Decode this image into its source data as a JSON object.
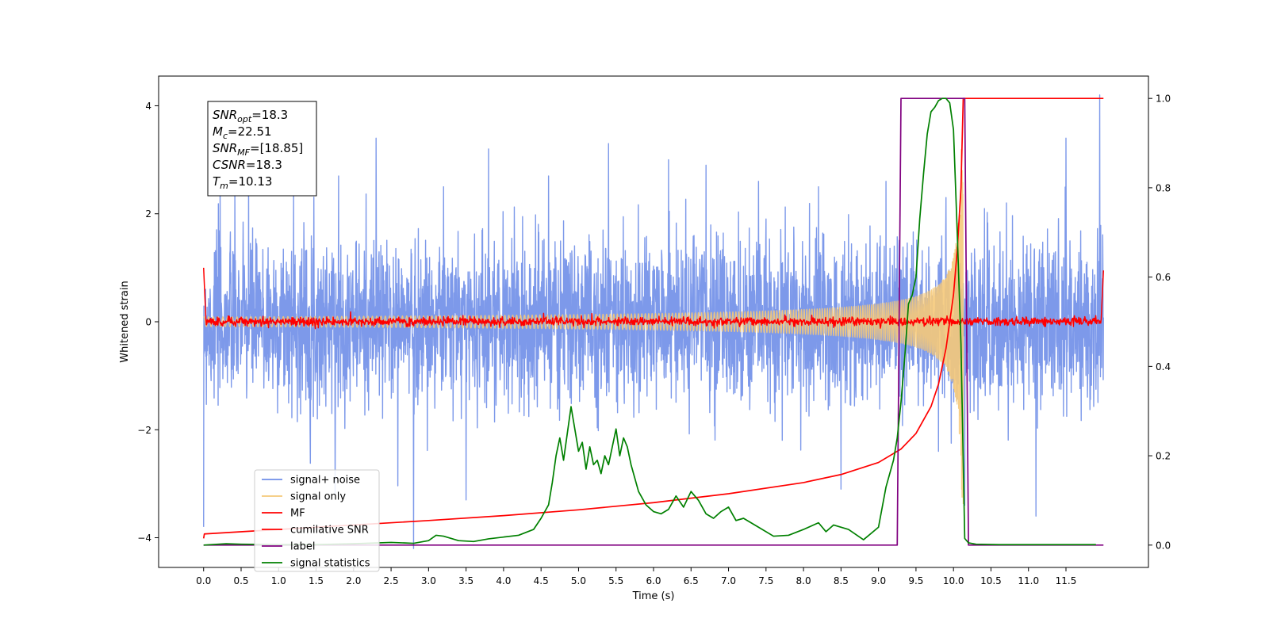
{
  "chart_data": {
    "type": "line",
    "xlabel": "Time (s)",
    "ylabel": "Whitened strain",
    "xlim": [
      -0.6,
      12.6
    ],
    "ylim": [
      -4.55,
      4.55
    ],
    "y2lim": [
      -0.05,
      1.05
    ],
    "xticks": [
      "0.0",
      "0.5",
      "1.0",
      "1.5",
      "2.0",
      "2.5",
      "3.0",
      "3.5",
      "4.0",
      "4.5",
      "5.0",
      "5.5",
      "6.0",
      "6.5",
      "7.0",
      "7.5",
      "8.0",
      "8.5",
      "9.0",
      "9.5",
      "10.0",
      "10.5",
      "11.0",
      "11.5"
    ],
    "yticks": [
      "−4",
      "−2",
      "0",
      "2",
      "4"
    ],
    "y2ticks": [
      "0.0",
      "0.2",
      "0.4",
      "0.6",
      "0.8",
      "1.0"
    ],
    "grid": false,
    "legend_position": "lower-left",
    "annotation": {
      "lines": [
        {
          "main": "SNR",
          "sub": "opt",
          "value": "=18.3"
        },
        {
          "main": "M",
          "sub": "c",
          "value": "=22.51"
        },
        {
          "main": "SNR",
          "sub": "MF",
          "value": "=[18.85]"
        },
        {
          "main": "CSNR",
          "sub": "",
          "value": "=18.3"
        },
        {
          "main": "T",
          "sub": "m",
          "value": "=10.13"
        }
      ]
    },
    "series": [
      {
        "name": "signal+ noise",
        "axis": "left",
        "color": "#6f8ee8",
        "style": "noise",
        "x_range": [
          0.0,
          12.0
        ],
        "sigma": 0.75,
        "peaks": [
          [
            0.22,
            2.7
          ],
          [
            0.6,
            2.6
          ],
          [
            1.2,
            2.4
          ],
          [
            1.8,
            2.7
          ],
          [
            2.3,
            3.4
          ],
          [
            2.8,
            -4.2
          ],
          [
            3.2,
            2.5
          ],
          [
            3.8,
            3.2
          ],
          [
            4.6,
            2.7
          ],
          [
            5.4,
            3.3
          ],
          [
            6.2,
            3.0
          ],
          [
            6.7,
            2.9
          ],
          [
            7.4,
            2.6
          ],
          [
            8.2,
            2.5
          ],
          [
            9.1,
            2.6
          ],
          [
            9.9,
            2.3
          ],
          [
            10.15,
            -3.4
          ],
          [
            11.5,
            3.4
          ],
          [
            11.95,
            4.2
          ],
          [
            0.0,
            -3.8
          ],
          [
            3.5,
            -3.3
          ],
          [
            8.5,
            -3.1
          ],
          [
            9.8,
            -2.4
          ],
          [
            11.1,
            -3.6
          ]
        ]
      },
      {
        "name": "signal only",
        "axis": "left",
        "color": "#f5c97a",
        "style": "chirp",
        "x_range": [
          0.0,
          10.13
        ],
        "merger_time": 10.13,
        "peak_amplitude": 3.4
      },
      {
        "name": "MF",
        "axis": "left",
        "color": "#ff0000",
        "style": "mf",
        "x_range": [
          0.0,
          12.0
        ],
        "start_value": 1.0,
        "end_value": 0.95,
        "noise_sigma": 0.04
      },
      {
        "name": "cumilative SNR",
        "axis": "right",
        "color": "#ff0000",
        "x": [
          0.0,
          0.01,
          1.0,
          2.0,
          3.0,
          4.0,
          5.0,
          6.0,
          7.0,
          8.0,
          8.5,
          9.0,
          9.3,
          9.5,
          9.7,
          9.8,
          9.9,
          10.0,
          10.05,
          10.1,
          10.13,
          12.0
        ],
        "values": [
          0.015,
          0.025,
          0.035,
          0.045,
          0.055,
          0.066,
          0.079,
          0.095,
          0.115,
          0.14,
          0.158,
          0.185,
          0.215,
          0.25,
          0.31,
          0.36,
          0.44,
          0.56,
          0.66,
          0.8,
          1.0,
          1.0
        ]
      },
      {
        "name": "label",
        "axis": "right",
        "color": "#800080",
        "x": [
          0.0,
          9.25,
          9.3,
          10.15,
          10.2,
          12.0
        ],
        "values": [
          0.0,
          0.0,
          1.0,
          1.0,
          0.0,
          0.0
        ]
      },
      {
        "name": "signal statistics",
        "axis": "right",
        "color": "#008000",
        "x": [
          0.0,
          0.3,
          0.5,
          1.0,
          1.5,
          2.0,
          2.5,
          2.8,
          3.0,
          3.1,
          3.2,
          3.4,
          3.6,
          3.8,
          4.0,
          4.2,
          4.4,
          4.5,
          4.6,
          4.65,
          4.7,
          4.75,
          4.8,
          4.85,
          4.9,
          4.95,
          5.0,
          5.05,
          5.1,
          5.15,
          5.2,
          5.25,
          5.3,
          5.35,
          5.4,
          5.45,
          5.5,
          5.55,
          5.6,
          5.65,
          5.7,
          5.75,
          5.8,
          5.9,
          6.0,
          6.1,
          6.2,
          6.3,
          6.4,
          6.5,
          6.6,
          6.7,
          6.8,
          6.9,
          7.0,
          7.1,
          7.2,
          7.4,
          7.6,
          7.8,
          8.0,
          8.2,
          8.3,
          8.4,
          8.6,
          8.8,
          9.0,
          9.1,
          9.15,
          9.2,
          9.25,
          9.3,
          9.35,
          9.4,
          9.45,
          9.5,
          9.55,
          9.6,
          9.65,
          9.7,
          9.75,
          9.8,
          9.85,
          9.9,
          9.95,
          10.0,
          10.05,
          10.1,
          10.15,
          10.2,
          10.3,
          10.6,
          11.0,
          11.5,
          11.9
        ],
        "values": [
          0.0,
          0.003,
          0.002,
          0.001,
          0.001,
          0.003,
          0.006,
          0.004,
          0.01,
          0.022,
          0.02,
          0.01,
          0.008,
          0.014,
          0.018,
          0.022,
          0.035,
          0.06,
          0.09,
          0.14,
          0.2,
          0.24,
          0.19,
          0.25,
          0.31,
          0.26,
          0.21,
          0.23,
          0.17,
          0.22,
          0.18,
          0.19,
          0.16,
          0.2,
          0.18,
          0.22,
          0.26,
          0.2,
          0.24,
          0.22,
          0.18,
          0.15,
          0.12,
          0.09,
          0.075,
          0.07,
          0.08,
          0.11,
          0.085,
          0.12,
          0.1,
          0.07,
          0.06,
          0.075,
          0.085,
          0.055,
          0.06,
          0.04,
          0.02,
          0.022,
          0.035,
          0.05,
          0.03,
          0.045,
          0.035,
          0.012,
          0.04,
          0.13,
          0.16,
          0.19,
          0.24,
          0.32,
          0.42,
          0.54,
          0.56,
          0.6,
          0.73,
          0.83,
          0.92,
          0.97,
          0.98,
          0.995,
          1.0,
          1.0,
          0.99,
          0.93,
          0.7,
          0.45,
          0.015,
          0.005,
          0.002,
          0.001,
          0.001,
          0.001,
          0.001
        ]
      }
    ]
  }
}
